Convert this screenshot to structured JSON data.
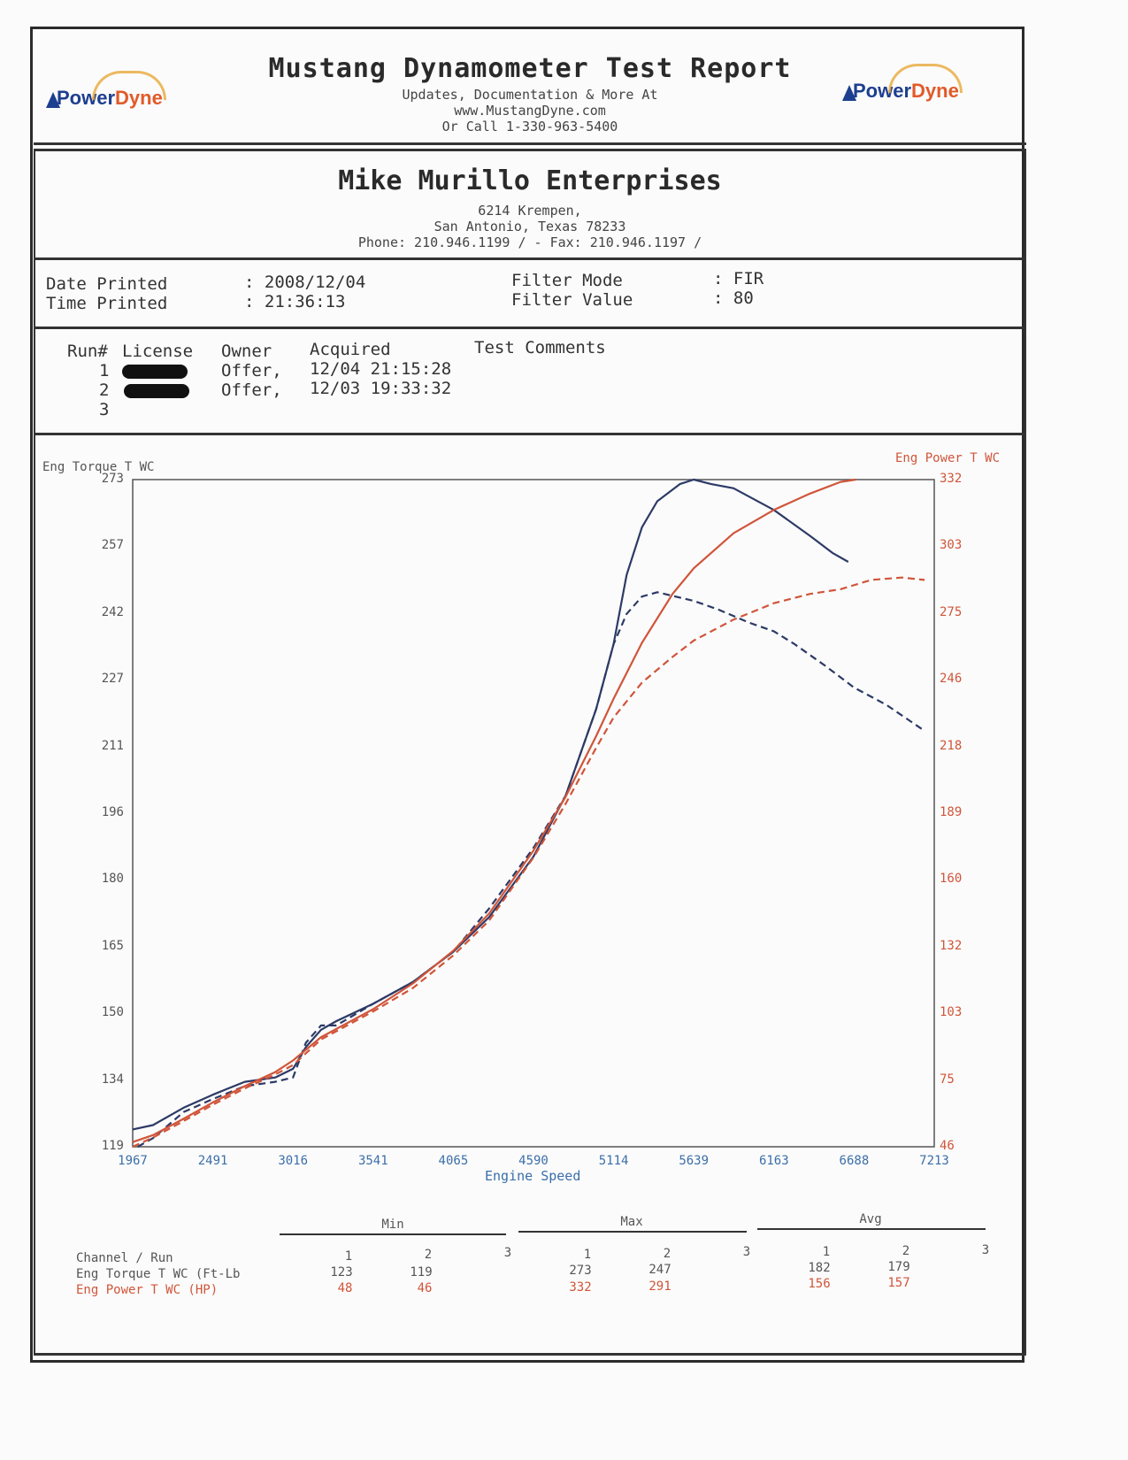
{
  "header": {
    "title": "Mustang Dynamometer Test Report",
    "line1": "Updates, Documentation & More At",
    "line2": "www.MustangDyne.com",
    "line3": "Or Call 1-330-963-5400",
    "logo_left": {
      "power": "Power",
      "dyne": "Dyne"
    },
    "logo_right": {
      "power": "Power",
      "dyne": "Dyne"
    }
  },
  "business": {
    "name": "Mike Murillo Enterprises",
    "street": "6214 Krempen,",
    "city": "San Antonio, Texas  78233",
    "contact": "Phone: 210.946.1199 /  - Fax: 210.946.1197 /"
  },
  "info": {
    "date_label": "Date Printed",
    "date_value": ": 2008/12/04",
    "time_label": "Time Printed",
    "time_value": ": 21:36:13",
    "filter_mode_label": "Filter Mode",
    "filter_mode_value": ": FIR",
    "filter_value_label": "Filter Value",
    "filter_value_value": ": 80"
  },
  "runs": {
    "headers": {
      "run": "Run#",
      "license": "License",
      "owner": "Owner",
      "acquired": "Acquired",
      "comments": "Test Comments"
    },
    "rows": [
      {
        "run": "1",
        "owner": "Offer,",
        "acquired": "12/04 21:15:28"
      },
      {
        "run": "2",
        "owner": "Offer,",
        "acquired": "12/03 19:33:32"
      },
      {
        "run": "3",
        "owner": "",
        "acquired": ""
      }
    ]
  },
  "colors": {
    "torque": "#2c3a66",
    "power": "#d0553a",
    "grid": "#555555"
  },
  "chart_data": {
    "type": "line",
    "xlabel": "Engine Speed",
    "ylabel_left": "Eng Torque T WC",
    "ylabel_right": "Eng Power T WC",
    "xlim": [
      1967,
      7213
    ],
    "ylim_left": [
      119,
      273
    ],
    "ylim_right": [
      46,
      332
    ],
    "x_ticks": [
      "1967",
      "2491",
      "3016",
      "3541",
      "4065",
      "4590",
      "5114",
      "5639",
      "6163",
      "6688",
      "7213"
    ],
    "y_ticks_left": [
      "273",
      "257",
      "242",
      "227",
      "211",
      "196",
      "180",
      "165",
      "150",
      "134",
      "119"
    ],
    "y_ticks_right": [
      "332",
      "303",
      "275",
      "246",
      "218",
      "189",
      "160",
      "132",
      "103",
      "75",
      "46"
    ],
    "series": [
      {
        "name": "Eng Torque T WC Run 1",
        "axis": "left",
        "style": "solid",
        "color": "#2c3a66",
        "x": [
          1967,
          2100,
          2300,
          2491,
          2700,
          2900,
          3016,
          3100,
          3200,
          3300,
          3541,
          3800,
          4065,
          4300,
          4590,
          4800,
          5000,
          5114,
          5200,
          5300,
          5400,
          5550,
          5639,
          5750,
          5900,
          6163,
          6400,
          6550,
          6650
        ],
        "y": [
          123,
          124,
          128,
          131,
          134,
          135,
          137,
          142,
          146,
          148,
          152,
          157,
          164,
          172,
          186,
          200,
          220,
          235,
          251,
          262,
          268,
          272,
          273,
          272,
          271,
          266,
          260,
          256,
          254
        ]
      },
      {
        "name": "Eng Torque T WC Run 2",
        "axis": "left",
        "style": "dashed",
        "color": "#2c3a66",
        "x": [
          2000,
          2100,
          2300,
          2491,
          2700,
          2900,
          3016,
          3100,
          3200,
          3300,
          3541,
          3800,
          4065,
          4300,
          4590,
          4800,
          5000,
          5114,
          5200,
          5300,
          5400,
          5639,
          5800,
          6000,
          6163,
          6300,
          6500,
          6688,
          6900,
          7150
        ],
        "y": [
          119,
          121,
          127,
          130,
          133,
          134,
          135,
          143,
          147,
          147,
          152,
          157,
          164,
          174,
          188,
          200,
          220,
          235,
          242,
          246,
          247,
          245,
          243,
          240,
          238,
          235,
          230,
          225,
          221,
          215
        ]
      },
      {
        "name": "Eng Power T WC Run 1",
        "axis": "right",
        "style": "solid",
        "color": "#d0553a",
        "x": [
          1967,
          2100,
          2300,
          2491,
          2700,
          2900,
          3016,
          3200,
          3541,
          3800,
          4065,
          4300,
          4590,
          4800,
          5000,
          5114,
          5300,
          5500,
          5639,
          5900,
          6163,
          6400,
          6600,
          6700
        ],
        "y": [
          48,
          51,
          58,
          65,
          72,
          78,
          83,
          93,
          105,
          116,
          130,
          146,
          173,
          196,
          222,
          238,
          262,
          283,
          294,
          309,
          319,
          326,
          331,
          332
        ]
      },
      {
        "name": "Eng Power T WC Run 2",
        "axis": "right",
        "style": "dashed",
        "color": "#d0553a",
        "x": [
          1967,
          2100,
          2300,
          2491,
          2700,
          2900,
          3016,
          3200,
          3541,
          3800,
          4065,
          4300,
          4590,
          4800,
          5000,
          5114,
          5300,
          5500,
          5639,
          5900,
          6163,
          6400,
          6600,
          6800,
          7000,
          7150
        ],
        "y": [
          46,
          50,
          57,
          64,
          71,
          77,
          81,
          92,
          104,
          114,
          128,
          143,
          170,
          193,
          217,
          230,
          245,
          256,
          263,
          272,
          279,
          283,
          285,
          289,
          290,
          289
        ]
      }
    ]
  },
  "stats": {
    "groups": [
      "Min",
      "Max",
      "Avg"
    ],
    "channel_run_label": "Channel / Run",
    "runs": [
      "1",
      "2",
      "3"
    ],
    "torque_label": "Eng Torque T WC (Ft-Lb",
    "power_label": "Eng Power T WC (HP)",
    "torque": {
      "min": [
        "123",
        "119"
      ],
      "max": [
        "273",
        "247"
      ],
      "avg": [
        "182",
        "179"
      ]
    },
    "power": {
      "min": [
        "48",
        "46"
      ],
      "max": [
        "332",
        "291"
      ],
      "avg": [
        "156",
        "157"
      ]
    }
  }
}
